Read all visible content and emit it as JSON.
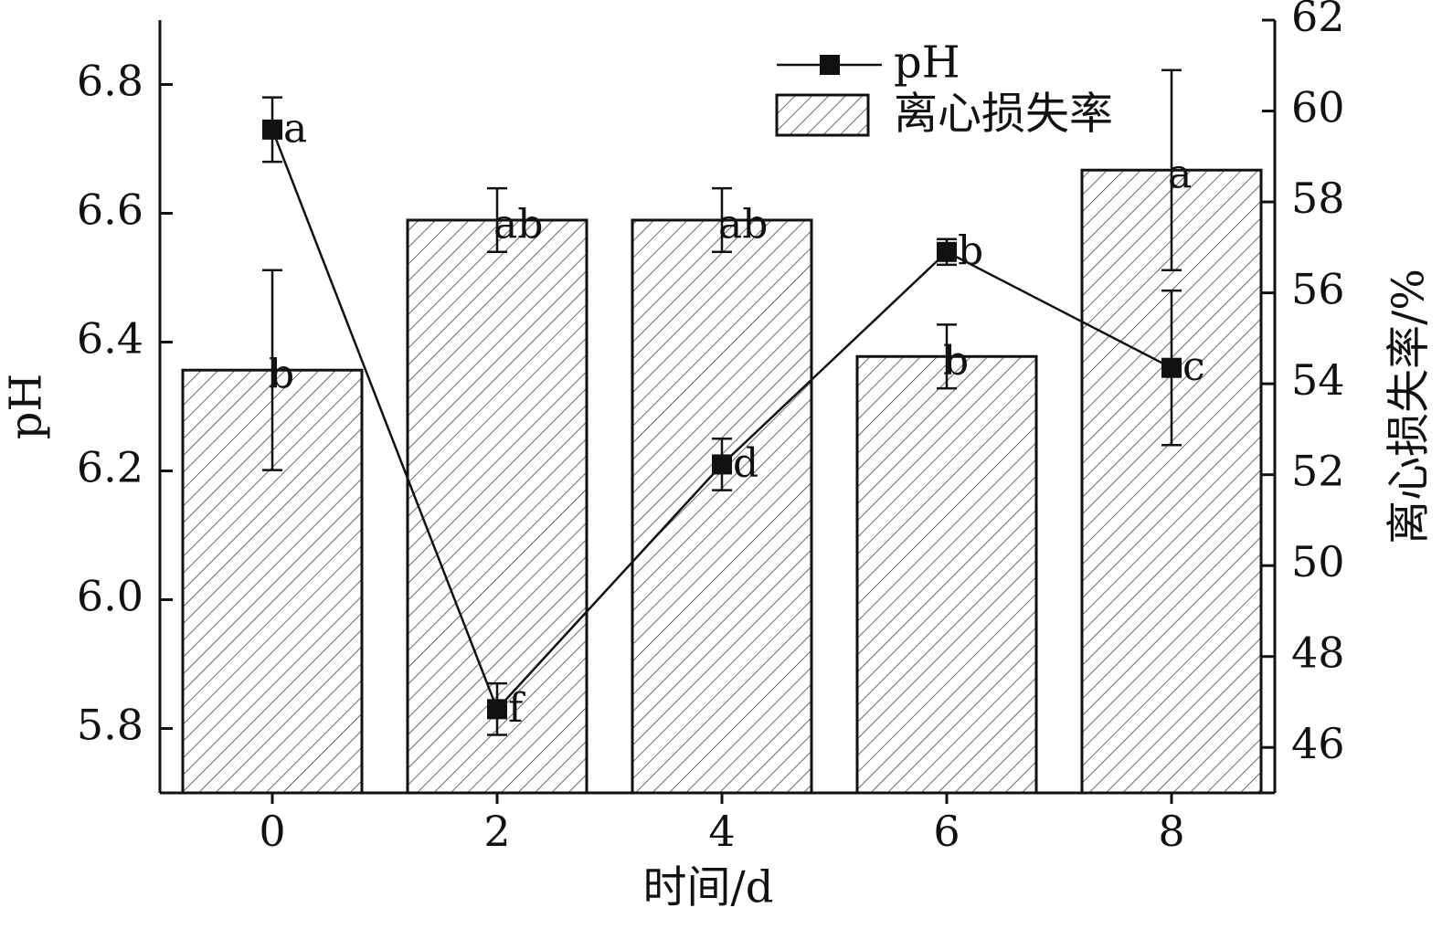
{
  "chart_data": {
    "type": "bar",
    "categories": [
      "0",
      "2",
      "4",
      "6",
      "8"
    ],
    "xlabel": "时间/d",
    "ylabel": "pH",
    "y2label": "离心损失率/%",
    "ylim": [
      5.7,
      6.9
    ],
    "yticks": [
      "5.8",
      "6.0",
      "6.2",
      "6.4",
      "6.6",
      "6.8"
    ],
    "y2lim": [
      45,
      62
    ],
    "y2ticks": [
      "46",
      "48",
      "50",
      "52",
      "54",
      "56",
      "58",
      "60",
      "62"
    ],
    "legend_position": "top-right",
    "series": [
      {
        "name": "离心损失率",
        "type": "bar",
        "axis": "right",
        "fill": "diagonal-hatch",
        "values": [
          54.3,
          57.6,
          57.6,
          54.6,
          58.7
        ],
        "error": [
          2.2,
          0.7,
          0.7,
          0.7,
          2.2
        ],
        "labels": [
          "b",
          "ab",
          "ab",
          "b",
          "a"
        ]
      },
      {
        "name": "pH",
        "type": "line",
        "axis": "left",
        "marker": "square",
        "values": [
          6.73,
          5.83,
          6.21,
          6.54,
          6.36
        ],
        "error": [
          0.05,
          0.04,
          0.04,
          0.02,
          0.12
        ],
        "labels": [
          "a",
          "f",
          "d",
          "b",
          "c"
        ]
      }
    ],
    "colors": {
      "ink": "#111111",
      "background": "#ffffff"
    }
  }
}
